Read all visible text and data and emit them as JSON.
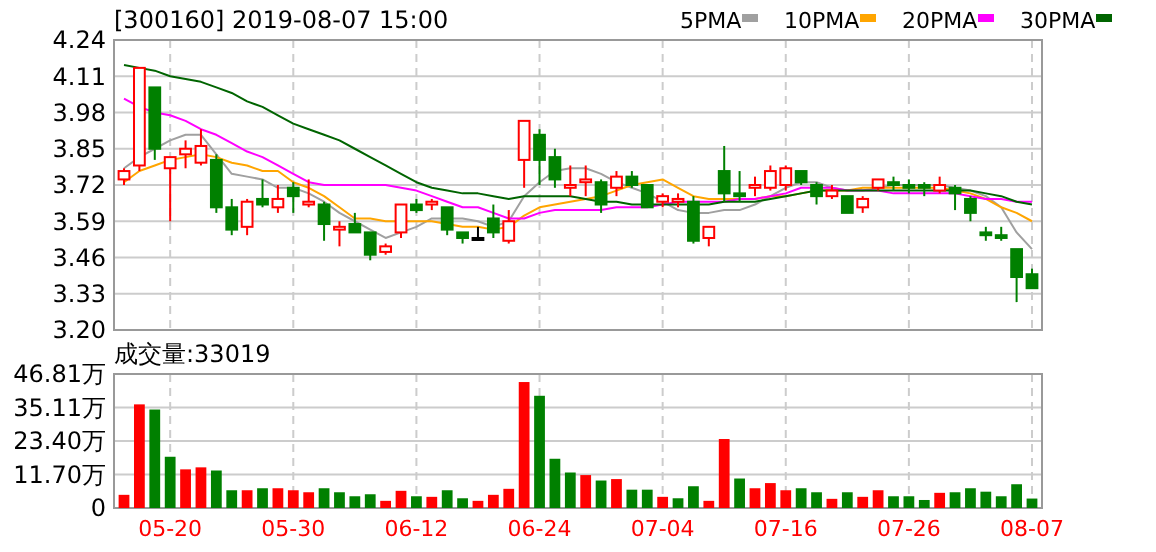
{
  "chart_data": [
    {
      "type": "candlestick",
      "title": "[300160] 2019-08-07 15:00",
      "categories": [
        null,
        null,
        null,
        null,
        null,
        null,
        null,
        null,
        null,
        null,
        null,
        null,
        null,
        null,
        null,
        null,
        null,
        null,
        null,
        null,
        null,
        null,
        null,
        null,
        null,
        null,
        null,
        null,
        null,
        null,
        null,
        null,
        null,
        null,
        null,
        null,
        null,
        null,
        null,
        null,
        null,
        null,
        null,
        null,
        null,
        null,
        null,
        null,
        null,
        null,
        null,
        null,
        null,
        null,
        null,
        null,
        null,
        null,
        null,
        null
      ],
      "ohlc": [
        [
          3.74,
          3.78,
          3.72,
          3.77
        ],
        [
          3.79,
          4.14,
          3.77,
          4.14
        ],
        [
          4.07,
          4.07,
          3.81,
          3.85
        ],
        [
          3.78,
          3.82,
          3.59,
          3.82
        ],
        [
          3.83,
          3.88,
          3.78,
          3.85
        ],
        [
          3.8,
          3.92,
          3.79,
          3.86
        ],
        [
          3.81,
          3.83,
          3.62,
          3.64
        ],
        [
          3.64,
          3.67,
          3.54,
          3.56
        ],
        [
          3.57,
          3.67,
          3.54,
          3.66
        ],
        [
          3.67,
          3.74,
          3.64,
          3.65
        ],
        [
          3.64,
          3.72,
          3.62,
          3.67
        ],
        [
          3.71,
          3.73,
          3.62,
          3.68
        ],
        [
          3.65,
          3.74,
          3.64,
          3.66
        ],
        [
          3.65,
          3.66,
          3.52,
          3.58
        ],
        [
          3.56,
          3.59,
          3.5,
          3.57
        ],
        [
          3.58,
          3.62,
          3.55,
          3.55
        ],
        [
          3.55,
          3.55,
          3.45,
          3.47
        ],
        [
          3.48,
          3.51,
          3.47,
          3.5
        ],
        [
          3.55,
          3.65,
          3.53,
          3.65
        ],
        [
          3.65,
          3.67,
          3.62,
          3.63
        ],
        [
          3.65,
          3.67,
          3.63,
          3.66
        ],
        [
          3.64,
          3.64,
          3.54,
          3.56
        ],
        [
          3.55,
          3.55,
          3.51,
          3.53
        ],
        [
          3.53,
          3.57,
          3.52,
          3.53
        ],
        [
          3.6,
          3.65,
          3.53,
          3.55
        ],
        [
          3.52,
          3.63,
          3.51,
          3.59
        ],
        [
          3.81,
          3.95,
          3.71,
          3.95
        ],
        [
          3.9,
          3.92,
          3.72,
          3.81
        ],
        [
          3.82,
          3.85,
          3.71,
          3.74
        ],
        [
          3.71,
          3.79,
          3.68,
          3.72
        ],
        [
          3.73,
          3.79,
          3.68,
          3.74
        ],
        [
          3.73,
          3.74,
          3.62,
          3.65
        ],
        [
          3.71,
          3.77,
          3.68,
          3.75
        ],
        [
          3.75,
          3.77,
          3.71,
          3.72
        ],
        [
          3.72,
          3.72,
          3.64,
          3.64
        ],
        [
          3.66,
          3.69,
          3.64,
          3.68
        ],
        [
          3.66,
          3.69,
          3.64,
          3.67
        ],
        [
          3.66,
          3.68,
          3.51,
          3.52
        ],
        [
          3.53,
          3.57,
          3.5,
          3.57
        ],
        [
          3.77,
          3.86,
          3.66,
          3.69
        ],
        [
          3.69,
          3.77,
          3.66,
          3.68
        ],
        [
          3.71,
          3.75,
          3.68,
          3.72
        ],
        [
          3.71,
          3.79,
          3.7,
          3.77
        ],
        [
          3.72,
          3.79,
          3.7,
          3.78
        ],
        [
          3.77,
          3.77,
          3.72,
          3.73
        ],
        [
          3.72,
          3.73,
          3.65,
          3.68
        ],
        [
          3.68,
          3.72,
          3.67,
          3.7
        ],
        [
          3.68,
          3.68,
          3.62,
          3.62
        ],
        [
          3.64,
          3.68,
          3.62,
          3.67
        ],
        [
          3.71,
          3.74,
          3.7,
          3.74
        ],
        [
          3.73,
          3.75,
          3.7,
          3.72
        ],
        [
          3.72,
          3.74,
          3.69,
          3.71
        ],
        [
          3.72,
          3.73,
          3.68,
          3.71
        ],
        [
          3.7,
          3.75,
          3.69,
          3.72
        ],
        [
          3.71,
          3.72,
          3.63,
          3.69
        ],
        [
          3.67,
          3.68,
          3.59,
          3.62
        ],
        [
          3.55,
          3.57,
          3.52,
          3.54
        ],
        [
          3.54,
          3.57,
          3.52,
          3.53
        ],
        [
          3.49,
          3.49,
          3.3,
          3.39
        ],
        [
          3.4,
          3.42,
          3.35,
          3.35
        ]
      ],
      "colors": [
        "#ff0000",
        "#ff0000",
        "#008000",
        "#ff0000",
        "#ff0000",
        "#ff0000",
        "#008000",
        "#008000",
        "#ff0000",
        "#008000",
        "#ff0000",
        "#008000",
        "#ff0000",
        "#008000",
        "#ff0000",
        "#008000",
        "#008000",
        "#ff0000",
        "#ff0000",
        "#008000",
        "#ff0000",
        "#008000",
        "#008000",
        "#000000",
        "#008000",
        "#ff0000",
        "#ff0000",
        "#008000",
        "#008000",
        "#ff0000",
        "#ff0000",
        "#008000",
        "#ff0000",
        "#008000",
        "#008000",
        "#ff0000",
        "#ff0000",
        "#008000",
        "#ff0000",
        "#008000",
        "#008000",
        "#ff0000",
        "#ff0000",
        "#ff0000",
        "#008000",
        "#008000",
        "#ff0000",
        "#008000",
        "#ff0000",
        "#ff0000",
        "#008000",
        "#008000",
        "#008000",
        "#ff0000",
        "#008000",
        "#008000",
        "#008000",
        "#008000",
        "#008000",
        "#008000"
      ],
      "series": [
        {
          "name": "5PMA",
          "type": "line",
          "color": "#a0a0a0",
          "values": [
            3.78,
            3.82,
            3.85,
            3.88,
            3.9,
            3.9,
            3.83,
            3.76,
            3.75,
            3.74,
            3.71,
            3.71,
            3.69,
            3.66,
            3.62,
            3.59,
            3.56,
            3.53,
            3.55,
            3.57,
            3.6,
            3.6,
            3.6,
            3.59,
            3.57,
            3.59,
            3.68,
            3.73,
            3.77,
            3.78,
            3.78,
            3.76,
            3.73,
            3.71,
            3.69,
            3.66,
            3.63,
            3.62,
            3.62,
            3.63,
            3.63,
            3.65,
            3.68,
            3.71,
            3.73,
            3.73,
            3.71,
            3.7,
            3.7,
            3.71,
            3.72,
            3.72,
            3.72,
            3.72,
            3.71,
            3.7,
            3.68,
            3.64,
            3.55,
            3.49
          ]
        },
        {
          "name": "10PMA",
          "type": "line",
          "color": "#ffa500",
          "values": [
            3.73,
            3.77,
            3.79,
            3.81,
            3.82,
            3.83,
            3.82,
            3.8,
            3.79,
            3.77,
            3.77,
            3.73,
            3.71,
            3.68,
            3.64,
            3.6,
            3.6,
            3.59,
            3.59,
            3.59,
            3.59,
            3.58,
            3.57,
            3.57,
            3.56,
            3.57,
            3.61,
            3.64,
            3.65,
            3.66,
            3.67,
            3.68,
            3.7,
            3.72,
            3.73,
            3.74,
            3.71,
            3.68,
            3.67,
            3.67,
            3.67,
            3.67,
            3.68,
            3.68,
            3.69,
            3.7,
            3.7,
            3.7,
            3.71,
            3.71,
            3.71,
            3.71,
            3.71,
            3.71,
            3.7,
            3.69,
            3.67,
            3.64,
            3.62,
            3.59
          ]
        },
        {
          "name": "20PMA",
          "type": "line",
          "color": "#ff00ff",
          "values": [
            4.03,
            4.0,
            3.98,
            3.97,
            3.95,
            3.92,
            3.9,
            3.87,
            3.84,
            3.82,
            3.79,
            3.76,
            3.73,
            3.72,
            3.72,
            3.72,
            3.72,
            3.72,
            3.71,
            3.7,
            3.68,
            3.66,
            3.64,
            3.64,
            3.62,
            3.6,
            3.6,
            3.62,
            3.63,
            3.63,
            3.63,
            3.63,
            3.64,
            3.64,
            3.64,
            3.65,
            3.66,
            3.66,
            3.66,
            3.66,
            3.67,
            3.67,
            3.68,
            3.69,
            3.71,
            3.71,
            3.71,
            3.7,
            3.7,
            3.7,
            3.69,
            3.69,
            3.69,
            3.69,
            3.69,
            3.68,
            3.67,
            3.67,
            3.66,
            3.66
          ]
        },
        {
          "name": "30PMA",
          "type": "line",
          "color": "#006400",
          "values": [
            4.15,
            4.14,
            4.13,
            4.11,
            4.1,
            4.09,
            4.07,
            4.05,
            4.02,
            4.0,
            3.97,
            3.94,
            3.92,
            3.9,
            3.88,
            3.85,
            3.82,
            3.79,
            3.76,
            3.73,
            3.71,
            3.7,
            3.69,
            3.69,
            3.68,
            3.67,
            3.68,
            3.68,
            3.68,
            3.68,
            3.67,
            3.66,
            3.66,
            3.65,
            3.65,
            3.65,
            3.65,
            3.65,
            3.65,
            3.66,
            3.66,
            3.66,
            3.67,
            3.68,
            3.69,
            3.7,
            3.7,
            3.7,
            3.7,
            3.7,
            3.7,
            3.7,
            3.7,
            3.7,
            3.7,
            3.7,
            3.69,
            3.68,
            3.66,
            3.65
          ]
        }
      ],
      "ylim": [
        3.2,
        4.24
      ],
      "yticks": [
        {
          "value": 3.2,
          "label": "3.20"
        },
        3.33,
        3.46,
        3.59,
        3.72,
        3.85,
        3.98,
        4.11,
        4.24
      ],
      "grid": true,
      "legend": "top right",
      "tick_labels": "y",
      "marker": "none"
    },
    {
      "type": "bar",
      "title": "成交量:33019",
      "categories": [
        null,
        null,
        null,
        "05-20",
        null,
        null,
        null,
        null,
        null,
        null,
        null,
        "05-30",
        null,
        null,
        null,
        null,
        null,
        null,
        null,
        "06-12",
        null,
        null,
        null,
        null,
        null,
        null,
        null,
        "06-24",
        null,
        null,
        null,
        null,
        null,
        null,
        null,
        "07-04",
        null,
        null,
        null,
        null,
        null,
        null,
        null,
        "07-16",
        null,
        null,
        null,
        null,
        null,
        null,
        null,
        "07-26",
        null,
        null,
        null,
        null,
        null,
        null,
        null,
        "08-07"
      ],
      "values": [
        4.6,
        36.2,
        34.4,
        17.9,
        13.5,
        14.2,
        13.1,
        6.2,
        6.2,
        6.9,
        6.9,
        6.2,
        5.5,
        6.9,
        5.5,
        4.1,
        4.8,
        2.5,
        6.0,
        4.1,
        3.9,
        6.2,
        3.4,
        2.5,
        4.6,
        6.7,
        44.0,
        39.2,
        17.2,
        12.4,
        11.5,
        9.6,
        10.1,
        6.4,
        6.4,
        3.9,
        3.4,
        7.6,
        2.5,
        24.1,
        10.3,
        6.9,
        8.7,
        6.2,
        6.9,
        5.5,
        3.2,
        5.5,
        3.9,
        6.2,
        4.1,
        4.1,
        2.8,
        5.3,
        5.5,
        6.9,
        5.7,
        4.1,
        8.3,
        3.3
      ],
      "colors": [
        "#ff0000",
        "#ff0000",
        "#008000",
        "#008000",
        "#ff0000",
        "#ff0000",
        "#008000",
        "#008000",
        "#ff0000",
        "#008000",
        "#ff0000",
        "#ff0000",
        "#ff0000",
        "#008000",
        "#008000",
        "#008000",
        "#008000",
        "#ff0000",
        "#ff0000",
        "#008000",
        "#ff0000",
        "#008000",
        "#008000",
        "#ff0000",
        "#ff0000",
        "#ff0000",
        "#ff0000",
        "#008000",
        "#008000",
        "#008000",
        "#ff0000",
        "#008000",
        "#ff0000",
        "#008000",
        "#008000",
        "#ff0000",
        "#008000",
        "#008000",
        "#ff0000",
        "#ff0000",
        "#008000",
        "#ff0000",
        "#ff0000",
        "#ff0000",
        "#008000",
        "#008000",
        "#ff0000",
        "#008000",
        "#ff0000",
        "#ff0000",
        "#008000",
        "#008000",
        "#008000",
        "#ff0000",
        "#008000",
        "#008000",
        "#008000",
        "#008000",
        "#008000",
        "#008000"
      ],
      "ylim": [
        0,
        46.81
      ],
      "yticks": [
        0,
        {
          "value": 11.7,
          "label": "11.70万"
        },
        {
          "value": 23.4,
          "label": "23.40万"
        },
        {
          "value": 35.11,
          "label": "35.11万"
        },
        {
          "value": 46.81,
          "label": "46.81万"
        }
      ],
      "grid": true
    }
  ]
}
